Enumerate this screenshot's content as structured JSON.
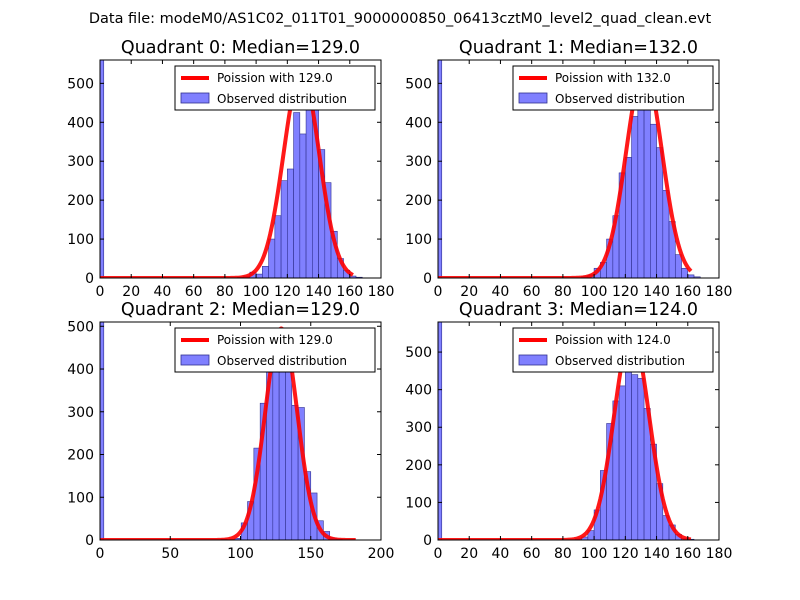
{
  "figure": {
    "suptitle": "Data file: modeM0/AS1C02_011T01_9000000850_06413cztM0_level2_quad_clean.evt"
  },
  "colors": {
    "hist_fill": "#8080ff",
    "hist_edge": "#303090",
    "poisson_line": "#ff0000"
  },
  "chart_data": [
    {
      "type": "bar",
      "title": "Quadrant 0: Median=129.0",
      "xlim": [
        0,
        180
      ],
      "ylim": [
        0,
        560
      ],
      "xticks": [
        0,
        20,
        40,
        60,
        80,
        100,
        120,
        140,
        160,
        180
      ],
      "yticks": [
        0,
        100,
        200,
        300,
        400,
        500
      ],
      "legend": {
        "position": "top-right",
        "poisson_label": "Poission with 129.0",
        "observed_label": "Observed distribution"
      },
      "poisson_mean": 129.0,
      "poisson_peak": 530,
      "bin_width": 4,
      "bins": [
        {
          "x": 0,
          "v": 560
        },
        {
          "x": 88,
          "v": 2
        },
        {
          "x": 92,
          "v": 4
        },
        {
          "x": 96,
          "v": 15
        },
        {
          "x": 100,
          "v": 10
        },
        {
          "x": 104,
          "v": 30
        },
        {
          "x": 108,
          "v": 100
        },
        {
          "x": 112,
          "v": 160
        },
        {
          "x": 116,
          "v": 250
        },
        {
          "x": 120,
          "v": 280
        },
        {
          "x": 124,
          "v": 425
        },
        {
          "x": 128,
          "v": 370
        },
        {
          "x": 132,
          "v": 525
        },
        {
          "x": 136,
          "v": 455
        },
        {
          "x": 140,
          "v": 330
        },
        {
          "x": 144,
          "v": 245
        },
        {
          "x": 148,
          "v": 120
        },
        {
          "x": 152,
          "v": 50
        },
        {
          "x": 156,
          "v": 20
        },
        {
          "x": 160,
          "v": 5
        },
        {
          "x": 164,
          "v": 2
        }
      ]
    },
    {
      "type": "bar",
      "title": "Quadrant 1: Median=132.0",
      "xlim": [
        0,
        180
      ],
      "ylim": [
        0,
        560
      ],
      "xticks": [
        0,
        20,
        40,
        60,
        80,
        100,
        120,
        140,
        160,
        180
      ],
      "yticks": [
        0,
        100,
        200,
        300,
        400,
        500
      ],
      "legend": {
        "position": "top-right",
        "poisson_label": "Poission with 132.0",
        "observed_label": "Observed distribution"
      },
      "poisson_mean": 132.0,
      "poisson_peak": 535,
      "bin_width": 4,
      "bins": [
        {
          "x": 0,
          "v": 560
        },
        {
          "x": 92,
          "v": 4
        },
        {
          "x": 96,
          "v": 8
        },
        {
          "x": 100,
          "v": 25
        },
        {
          "x": 104,
          "v": 40
        },
        {
          "x": 108,
          "v": 100
        },
        {
          "x": 112,
          "v": 160
        },
        {
          "x": 116,
          "v": 270
        },
        {
          "x": 120,
          "v": 310
        },
        {
          "x": 124,
          "v": 415
        },
        {
          "x": 128,
          "v": 510
        },
        {
          "x": 132,
          "v": 530
        },
        {
          "x": 136,
          "v": 395
        },
        {
          "x": 140,
          "v": 335
        },
        {
          "x": 144,
          "v": 225
        },
        {
          "x": 148,
          "v": 145
        },
        {
          "x": 152,
          "v": 60
        },
        {
          "x": 156,
          "v": 25
        },
        {
          "x": 160,
          "v": 8
        },
        {
          "x": 164,
          "v": 3
        }
      ]
    },
    {
      "type": "bar",
      "title": "Quadrant 2: Median=129.0",
      "xlim": [
        0,
        200
      ],
      "ylim": [
        0,
        510
      ],
      "xticks": [
        0,
        50,
        100,
        150,
        200
      ],
      "yticks": [
        0,
        100,
        200,
        300,
        400,
        500
      ],
      "legend": {
        "position": "top-right",
        "poisson_label": "Poission with 129.0",
        "observed_label": "Observed distribution"
      },
      "poisson_mean": 129.0,
      "poisson_peak": 495,
      "bin_width": 4.5,
      "bins": [
        {
          "x": 0,
          "v": 510
        },
        {
          "x": 86,
          "v": 2
        },
        {
          "x": 96,
          "v": 4
        },
        {
          "x": 100.5,
          "v": 40
        },
        {
          "x": 105,
          "v": 90
        },
        {
          "x": 109.5,
          "v": 215
        },
        {
          "x": 114,
          "v": 320
        },
        {
          "x": 118.5,
          "v": 405
        },
        {
          "x": 123,
          "v": 490
        },
        {
          "x": 127.5,
          "v": 485
        },
        {
          "x": 132,
          "v": 490
        },
        {
          "x": 136.5,
          "v": 315
        },
        {
          "x": 141,
          "v": 310
        },
        {
          "x": 145.5,
          "v": 160
        },
        {
          "x": 150,
          "v": 110
        },
        {
          "x": 154.5,
          "v": 45
        },
        {
          "x": 159,
          "v": 20
        },
        {
          "x": 163.5,
          "v": 5
        },
        {
          "x": 168,
          "v": 2
        }
      ]
    },
    {
      "type": "bar",
      "title": "Quadrant 3: Median=124.0",
      "xlim": [
        0,
        180
      ],
      "ylim": [
        0,
        580
      ],
      "xticks": [
        0,
        20,
        40,
        60,
        80,
        100,
        120,
        140,
        160,
        180
      ],
      "yticks": [
        0,
        100,
        200,
        300,
        400,
        500
      ],
      "legend": {
        "position": "top-right",
        "poisson_label": "Poission with 124.0",
        "observed_label": "Observed distribution"
      },
      "poisson_mean": 124.0,
      "poisson_peak": 550,
      "bin_width": 4,
      "bins": [
        {
          "x": 0,
          "v": 580
        },
        {
          "x": 88,
          "v": 3
        },
        {
          "x": 92,
          "v": 8
        },
        {
          "x": 96,
          "v": 25
        },
        {
          "x": 100,
          "v": 80
        },
        {
          "x": 104,
          "v": 185
        },
        {
          "x": 108,
          "v": 310
        },
        {
          "x": 112,
          "v": 370
        },
        {
          "x": 116,
          "v": 410
        },
        {
          "x": 120,
          "v": 545
        },
        {
          "x": 124,
          "v": 440
        },
        {
          "x": 128,
          "v": 430
        },
        {
          "x": 132,
          "v": 350
        },
        {
          "x": 136,
          "v": 255
        },
        {
          "x": 140,
          "v": 150
        },
        {
          "x": 144,
          "v": 65
        },
        {
          "x": 148,
          "v": 40
        },
        {
          "x": 152,
          "v": 15
        },
        {
          "x": 156,
          "v": 4
        },
        {
          "x": 160,
          "v": 2
        }
      ]
    }
  ]
}
